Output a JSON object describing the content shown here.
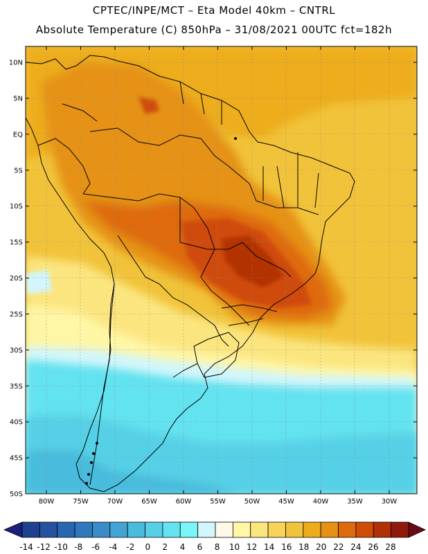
{
  "header": {
    "line1": "CPTEC/INPE/MCT –  Eta Model 40km – CNTRL",
    "line2": "Absolute Temperature (C) 850hPa – 31/08/2021 00UTC fct=182h"
  },
  "map": {
    "lat_labels": [
      "10N",
      "5N",
      "EQ",
      "5S",
      "10S",
      "15S",
      "20S",
      "25S",
      "30S",
      "35S",
      "40S",
      "45S",
      "50S"
    ],
    "lon_labels": [
      "80W",
      "75W",
      "70W",
      "65W",
      "60W",
      "55W",
      "50W",
      "45W",
      "40W",
      "35W",
      "30W"
    ]
  },
  "colorbar": {
    "labels": [
      "-14",
      "-12",
      "-10",
      "-8",
      "-6",
      "-4",
      "-2",
      "0",
      "2",
      "4",
      "6",
      "8",
      "10",
      "12",
      "14",
      "16",
      "18",
      "20",
      "22",
      "24",
      "26",
      "28"
    ],
    "low_arrow_color": "#1a1f80",
    "high_arrow_color": "#6a0a14",
    "colors": [
      "#1f3f8f",
      "#2553a1",
      "#2a66b0",
      "#2f78bd",
      "#3a8cc9",
      "#42a3d4",
      "#49bbdc",
      "#56d0e6",
      "#63e2ef",
      "#7af6f8",
      "#d2f6fb",
      "#fff8e6",
      "#fff6a6",
      "#fbe57f",
      "#f7d458",
      "#f1c33a",
      "#edad1a",
      "#e59214",
      "#de6a0e",
      "#cf4c09",
      "#b23006",
      "#8f1a0a"
    ]
  }
}
